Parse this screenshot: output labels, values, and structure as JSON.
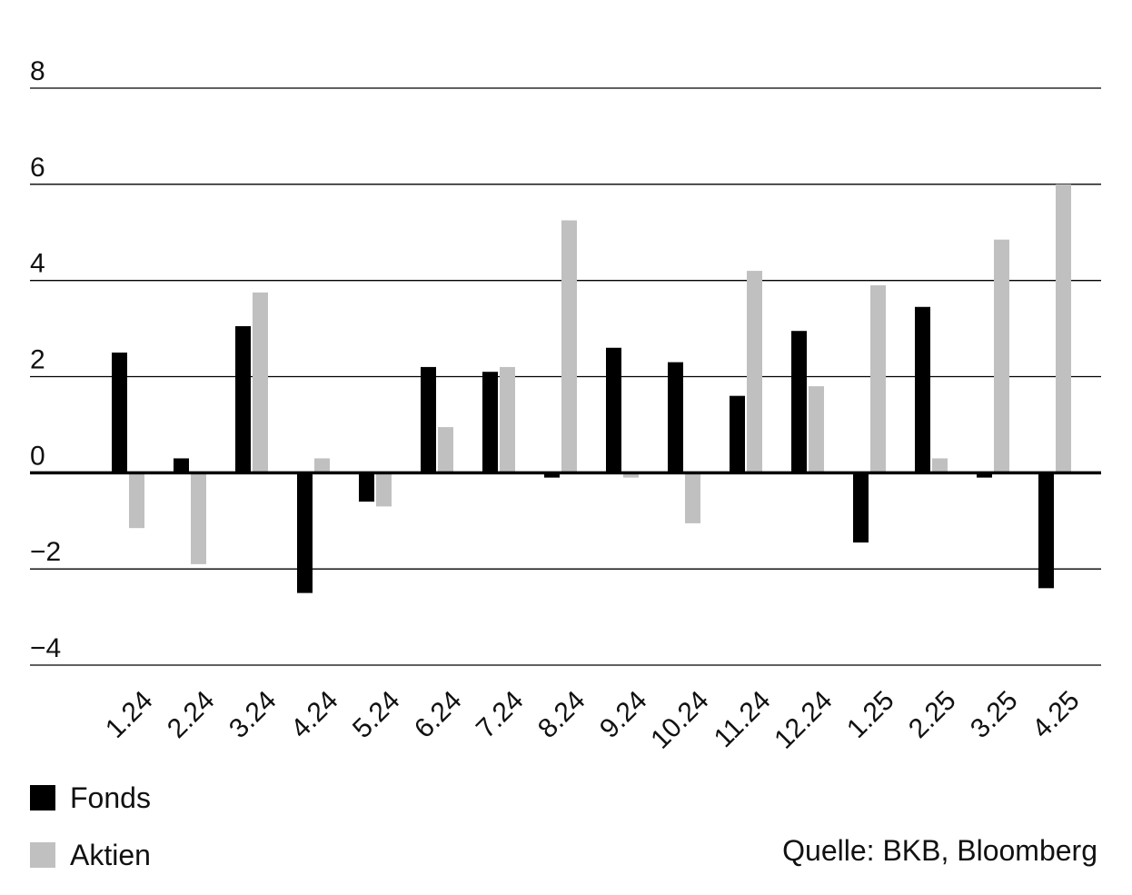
{
  "chart_data": {
    "type": "bar",
    "title": "",
    "xlabel": "",
    "ylabel": "",
    "ylim": [
      -4,
      8
    ],
    "yticks": [
      8,
      6,
      4,
      2,
      0,
      -2,
      -4
    ],
    "ytick_labels": [
      "8",
      "6",
      "4",
      "2",
      "0",
      "−2",
      "−4"
    ],
    "grid": true,
    "legend_position": "bottom-left",
    "categories": [
      "1.24",
      "2.24",
      "3.24",
      "4.24",
      "5.24",
      "6.24",
      "7.24",
      "8.24",
      "9.24",
      "10.24",
      "11.24",
      "12.24",
      "1.25",
      "2.25",
      "3.25",
      "4.25"
    ],
    "series": [
      {
        "name": "Fonds",
        "color": "#000000",
        "values": [
          2.5,
          0.3,
          3.05,
          -2.5,
          -0.6,
          2.2,
          2.1,
          -0.1,
          2.6,
          2.3,
          1.6,
          2.95,
          -1.45,
          3.45,
          -0.1,
          -2.4
        ]
      },
      {
        "name": "Aktien",
        "color": "#c0c0c0",
        "values": [
          -1.15,
          -1.9,
          3.75,
          0.3,
          -0.7,
          0.95,
          2.2,
          5.25,
          -0.1,
          -1.05,
          4.2,
          1.8,
          3.9,
          0.3,
          4.85,
          6.0
        ]
      }
    ]
  },
  "legend": {
    "items": [
      {
        "label": "Fonds",
        "color": "#000000"
      },
      {
        "label": "Aktien",
        "color": "#c0c0c0"
      }
    ]
  },
  "source_text": "Quelle: BKB, Bloomberg"
}
